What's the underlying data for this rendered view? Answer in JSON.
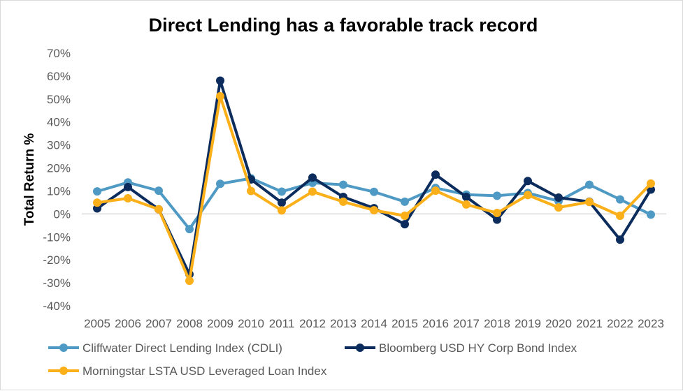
{
  "chart_data": {
    "type": "line",
    "title": "Direct Lending has a favorable track record",
    "xlabel": "",
    "ylabel": "Total Return %",
    "ylim": [
      -40,
      70
    ],
    "yticks": [
      70,
      60,
      50,
      40,
      30,
      20,
      10,
      0,
      -10,
      -20,
      -30,
      -40
    ],
    "ytick_labels": [
      "70%",
      "60%",
      "50%",
      "40%",
      "30%",
      "20%",
      "10%",
      "0%",
      "-10%",
      "-20%",
      "-30%",
      "-40%"
    ],
    "grid": false,
    "legend": "bottom",
    "categories": [
      "2005",
      "2006",
      "2007",
      "2008",
      "2009",
      "2010",
      "2011",
      "2012",
      "2013",
      "2014",
      "2015",
      "2016",
      "2017",
      "2018",
      "2019",
      "2020",
      "2021",
      "2022",
      "2023"
    ],
    "series": [
      {
        "name": "Cliffwater Direct Lending Index (CDLI)",
        "color": "#4f9ac4",
        "values": [
          9.8,
          13.7,
          10.1,
          -6.6,
          13.1,
          15.5,
          9.7,
          13.5,
          12.7,
          9.6,
          5.3,
          11.3,
          8.4,
          7.9,
          9.1,
          5.6,
          12.7,
          6.3,
          -0.3
        ]
      },
      {
        "name": "Bloomberg USD HY Corp Bond Index",
        "color": "#0b2c5c",
        "values": [
          2.4,
          11.7,
          2.0,
          -26.3,
          58.0,
          15.0,
          4.9,
          15.8,
          7.4,
          2.5,
          -4.5,
          17.1,
          7.4,
          -2.5,
          14.3,
          7.1,
          5.3,
          -11.2,
          10.6
        ]
      },
      {
        "name": "Morningstar LSTA USD Leveraged Loan Index",
        "color": "#fbb01a",
        "values": [
          4.9,
          6.8,
          2.0,
          -29.1,
          51.2,
          10.0,
          1.5,
          9.7,
          5.3,
          1.6,
          -0.8,
          10.1,
          4.1,
          0.4,
          8.2,
          2.8,
          5.2,
          -0.8,
          13.2
        ]
      }
    ]
  }
}
